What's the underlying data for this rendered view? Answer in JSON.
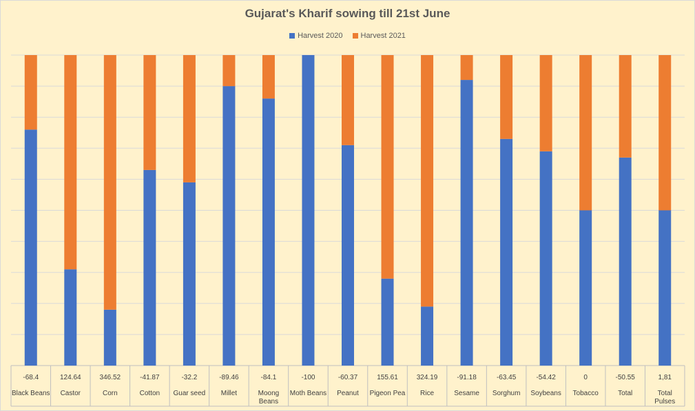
{
  "chart_data": {
    "type": "bar",
    "stacked": "100%",
    "title": "Gujarat's Kharif sowing till 21st June",
    "categories": [
      "Black Beans",
      "Castor",
      "Corn",
      "Cotton",
      "Guar seed",
      "Millet",
      "Moong Beans",
      "Moth Beans",
      "Peanut",
      "Pigeon Pea",
      "Rice",
      "Sesame",
      "Sorghum",
      "Soybeans",
      "Tobacco",
      "Total",
      "Total Pulses"
    ],
    "table_row": [
      "-68.4",
      "124.64",
      "346.52",
      "-41.87",
      "-32.2",
      "-89.46",
      "-84.1",
      "-100",
      "-60.37",
      "155.61",
      "324.19",
      "-91.18",
      "-63.45",
      "-54.42",
      "0",
      "-50.55",
      "1,81"
    ],
    "series": [
      {
        "name": "Harvest 2020",
        "color": "#4472c4",
        "share_percent": [
          76,
          31,
          18,
          63,
          59,
          90,
          86,
          100,
          71,
          28,
          19,
          92,
          73,
          69,
          50,
          67,
          50
        ]
      },
      {
        "name": "Harvest 2021",
        "color": "#ed7d31",
        "share_percent": [
          24,
          69,
          82,
          37,
          41,
          10,
          14,
          0,
          29,
          72,
          81,
          8,
          27,
          31,
          50,
          33,
          50
        ]
      }
    ],
    "ylim": [
      0,
      100
    ],
    "grid": true,
    "legend_position": "top"
  }
}
